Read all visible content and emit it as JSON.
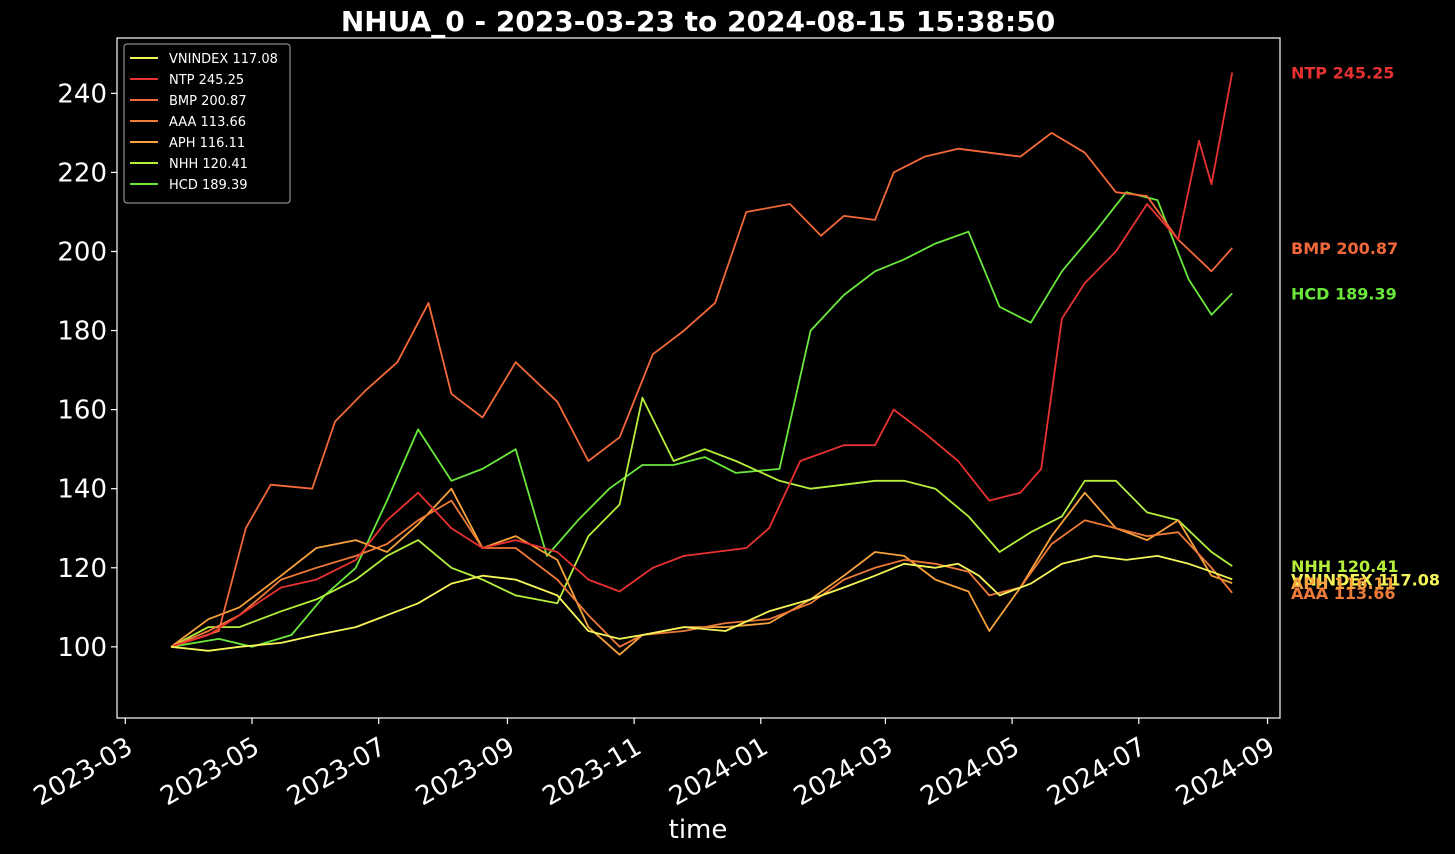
{
  "chart_data": {
    "type": "line",
    "title": "NHUA_0 - 2023-03-23 to 2024-08-15 15:38:50",
    "xlabel": "time",
    "ylabel": "",
    "xlim": [
      "2023-02-25",
      "2024-09-07"
    ],
    "ylim": [
      82,
      254
    ],
    "grid": false,
    "legend_position": "top-left",
    "y_ticks": [
      100,
      120,
      140,
      160,
      180,
      200,
      220,
      240
    ],
    "x_ticks": [
      "2023-03",
      "2023-05",
      "2023-07",
      "2023-09",
      "2023-11",
      "2024-01",
      "2024-03",
      "2024-05",
      "2024-07",
      "2024-09"
    ],
    "series": [
      {
        "name": "VNINDEX",
        "legend": "VNINDEX 117.08",
        "end_label": "VNINDEX 117.08",
        "color": "#f5f55a",
        "last": 117.08,
        "points": [
          [
            "2023-03-23",
            100
          ],
          [
            "2023-04-10",
            99
          ],
          [
            "2023-04-25",
            100
          ],
          [
            "2023-05-15",
            101
          ],
          [
            "2023-06-01",
            103
          ],
          [
            "2023-06-20",
            105
          ],
          [
            "2023-07-05",
            108
          ],
          [
            "2023-07-20",
            111
          ],
          [
            "2023-08-05",
            116
          ],
          [
            "2023-08-20",
            118
          ],
          [
            "2023-09-05",
            117
          ],
          [
            "2023-09-25",
            113
          ],
          [
            "2023-10-10",
            104
          ],
          [
            "2023-10-25",
            102
          ],
          [
            "2023-11-05",
            103
          ],
          [
            "2023-11-25",
            105
          ],
          [
            "2023-12-15",
            104
          ],
          [
            "2024-01-05",
            109
          ],
          [
            "2024-01-25",
            112
          ],
          [
            "2024-02-10",
            115
          ],
          [
            "2024-02-25",
            118
          ],
          [
            "2024-03-10",
            121
          ],
          [
            "2024-03-25",
            120
          ],
          [
            "2024-04-05",
            121
          ],
          [
            "2024-04-15",
            118
          ],
          [
            "2024-04-25",
            113
          ],
          [
            "2024-05-10",
            116
          ],
          [
            "2024-05-25",
            121
          ],
          [
            "2024-06-10",
            123
          ],
          [
            "2024-06-25",
            122
          ],
          [
            "2024-07-10",
            123
          ],
          [
            "2024-07-25",
            121
          ],
          [
            "2024-08-05",
            119
          ],
          [
            "2024-08-15",
            117.08
          ]
        ]
      },
      {
        "name": "NTP",
        "legend": "NTP 245.25",
        "end_label": "NTP 245.25",
        "color": "#e83232",
        "last": 245.25,
        "points": [
          [
            "2023-03-23",
            100
          ],
          [
            "2023-04-10",
            103
          ],
          [
            "2023-04-25",
            108
          ],
          [
            "2023-05-15",
            115
          ],
          [
            "2023-06-01",
            117
          ],
          [
            "2023-06-20",
            122
          ],
          [
            "2023-07-05",
            132
          ],
          [
            "2023-07-20",
            139
          ],
          [
            "2023-08-05",
            130
          ],
          [
            "2023-08-20",
            125
          ],
          [
            "2023-09-05",
            127
          ],
          [
            "2023-09-25",
            124
          ],
          [
            "2023-10-10",
            117
          ],
          [
            "2023-10-25",
            114
          ],
          [
            "2023-11-10",
            120
          ],
          [
            "2023-11-25",
            123
          ],
          [
            "2023-12-10",
            124
          ],
          [
            "2023-12-25",
            125
          ],
          [
            "2024-01-05",
            130
          ],
          [
            "2024-01-20",
            147
          ],
          [
            "2024-02-10",
            151
          ],
          [
            "2024-02-25",
            151
          ],
          [
            "2024-03-05",
            160
          ],
          [
            "2024-03-20",
            154
          ],
          [
            "2024-04-05",
            147
          ],
          [
            "2024-04-20",
            137
          ],
          [
            "2024-05-05",
            139
          ],
          [
            "2024-05-15",
            145
          ],
          [
            "2024-05-25",
            183
          ],
          [
            "2024-06-05",
            192
          ],
          [
            "2024-06-20",
            200
          ],
          [
            "2024-07-05",
            212
          ],
          [
            "2024-07-20",
            203
          ],
          [
            "2024-07-30",
            228
          ],
          [
            "2024-08-05",
            217
          ],
          [
            "2024-08-15",
            245.25
          ]
        ]
      },
      {
        "name": "BMP",
        "legend": "BMP 200.87",
        "end_label": "BMP 200.87",
        "color": "#f2683a",
        "last": 200.87,
        "points": [
          [
            "2023-03-23",
            100
          ],
          [
            "2023-04-15",
            104
          ],
          [
            "2023-04-28",
            130
          ],
          [
            "2023-05-10",
            141
          ],
          [
            "2023-05-30",
            140
          ],
          [
            "2023-06-10",
            157
          ],
          [
            "2023-06-25",
            165
          ],
          [
            "2023-07-10",
            172
          ],
          [
            "2023-07-25",
            187
          ],
          [
            "2023-08-05",
            164
          ],
          [
            "2023-08-20",
            158
          ],
          [
            "2023-09-05",
            172
          ],
          [
            "2023-09-25",
            162
          ],
          [
            "2023-10-10",
            147
          ],
          [
            "2023-10-25",
            153
          ],
          [
            "2023-11-10",
            174
          ],
          [
            "2023-11-25",
            180
          ],
          [
            "2023-12-10",
            187
          ],
          [
            "2023-12-25",
            210
          ],
          [
            "2024-01-15",
            212
          ],
          [
            "2024-01-30",
            204
          ],
          [
            "2024-02-10",
            209
          ],
          [
            "2024-02-25",
            208
          ],
          [
            "2024-03-05",
            220
          ],
          [
            "2024-03-20",
            224
          ],
          [
            "2024-04-05",
            226
          ],
          [
            "2024-04-20",
            225
          ],
          [
            "2024-05-05",
            224
          ],
          [
            "2024-05-20",
            230
          ],
          [
            "2024-06-05",
            225
          ],
          [
            "2024-06-20",
            215
          ],
          [
            "2024-07-05",
            214
          ],
          [
            "2024-07-20",
            203
          ],
          [
            "2024-08-05",
            195
          ],
          [
            "2024-08-15",
            200.87
          ]
        ]
      },
      {
        "name": "AAA",
        "legend": "AAA 113.66",
        "end_label": "AAA 113.66",
        "color": "#ee7a38",
        "last": 113.66,
        "points": [
          [
            "2023-03-23",
            100
          ],
          [
            "2023-04-10",
            104
          ],
          [
            "2023-04-25",
            108
          ],
          [
            "2023-05-15",
            117
          ],
          [
            "2023-06-01",
            120
          ],
          [
            "2023-06-20",
            123
          ],
          [
            "2023-07-05",
            126
          ],
          [
            "2023-07-20",
            132
          ],
          [
            "2023-08-05",
            137
          ],
          [
            "2023-08-20",
            125
          ],
          [
            "2023-09-05",
            125
          ],
          [
            "2023-09-25",
            117
          ],
          [
            "2023-10-10",
            108
          ],
          [
            "2023-10-25",
            100
          ],
          [
            "2023-11-05",
            103
          ],
          [
            "2023-11-25",
            104
          ],
          [
            "2023-12-15",
            106
          ],
          [
            "2024-01-05",
            107
          ],
          [
            "2024-01-25",
            111
          ],
          [
            "2024-02-10",
            117
          ],
          [
            "2024-02-25",
            120
          ],
          [
            "2024-03-10",
            122
          ],
          [
            "2024-03-25",
            121
          ],
          [
            "2024-04-10",
            119
          ],
          [
            "2024-04-20",
            113
          ],
          [
            "2024-05-05",
            115
          ],
          [
            "2024-05-20",
            126
          ],
          [
            "2024-06-05",
            132
          ],
          [
            "2024-06-20",
            130
          ],
          [
            "2024-07-05",
            128
          ],
          [
            "2024-07-20",
            129
          ],
          [
            "2024-08-05",
            120
          ],
          [
            "2024-08-15",
            113.66
          ]
        ]
      },
      {
        "name": "APH",
        "legend": "APH 116.11",
        "end_label": "APH 116.11",
        "color": "#f7a23c",
        "last": 116.11,
        "points": [
          [
            "2023-03-23",
            100
          ],
          [
            "2023-04-10",
            107
          ],
          [
            "2023-04-25",
            110
          ],
          [
            "2023-05-15",
            118
          ],
          [
            "2023-06-01",
            125
          ],
          [
            "2023-06-20",
            127
          ],
          [
            "2023-07-05",
            124
          ],
          [
            "2023-07-20",
            131
          ],
          [
            "2023-08-05",
            140
          ],
          [
            "2023-08-20",
            125
          ],
          [
            "2023-09-05",
            128
          ],
          [
            "2023-09-25",
            122
          ],
          [
            "2023-10-10",
            105
          ],
          [
            "2023-10-25",
            98
          ],
          [
            "2023-11-05",
            103
          ],
          [
            "2023-11-25",
            105
          ],
          [
            "2023-12-15",
            105
          ],
          [
            "2024-01-05",
            106
          ],
          [
            "2024-01-25",
            112
          ],
          [
            "2024-02-10",
            118
          ],
          [
            "2024-02-25",
            124
          ],
          [
            "2024-03-10",
            123
          ],
          [
            "2024-03-25",
            117
          ],
          [
            "2024-04-10",
            114
          ],
          [
            "2024-04-20",
            104
          ],
          [
            "2024-05-05",
            115
          ],
          [
            "2024-05-20",
            128
          ],
          [
            "2024-06-05",
            139
          ],
          [
            "2024-06-20",
            130
          ],
          [
            "2024-07-05",
            127
          ],
          [
            "2024-07-20",
            132
          ],
          [
            "2024-08-05",
            118
          ],
          [
            "2024-08-15",
            116.11
          ]
        ]
      },
      {
        "name": "NHH",
        "legend": "NHH 120.41",
        "end_label": "NHH 120.41",
        "color": "#b6ee3c",
        "last": 120.41,
        "points": [
          [
            "2023-03-23",
            100
          ],
          [
            "2023-04-10",
            105
          ],
          [
            "2023-04-25",
            105
          ],
          [
            "2023-05-15",
            109
          ],
          [
            "2023-06-01",
            112
          ],
          [
            "2023-06-20",
            117
          ],
          [
            "2023-07-05",
            123
          ],
          [
            "2023-07-20",
            127
          ],
          [
            "2023-08-05",
            120
          ],
          [
            "2023-08-20",
            117
          ],
          [
            "2023-09-05",
            113
          ],
          [
            "2023-09-25",
            111
          ],
          [
            "2023-10-10",
            128
          ],
          [
            "2023-10-25",
            136
          ],
          [
            "2023-11-05",
            163
          ],
          [
            "2023-11-20",
            147
          ],
          [
            "2023-12-05",
            150
          ],
          [
            "2023-12-20",
            147
          ],
          [
            "2024-01-10",
            142
          ],
          [
            "2024-01-25",
            140
          ],
          [
            "2024-02-10",
            141
          ],
          [
            "2024-02-25",
            142
          ],
          [
            "2024-03-10",
            142
          ],
          [
            "2024-03-25",
            140
          ],
          [
            "2024-04-10",
            133
          ],
          [
            "2024-04-25",
            124
          ],
          [
            "2024-05-10",
            129
          ],
          [
            "2024-05-25",
            133
          ],
          [
            "2024-06-05",
            142
          ],
          [
            "2024-06-20",
            142
          ],
          [
            "2024-07-05",
            134
          ],
          [
            "2024-07-20",
            132
          ],
          [
            "2024-08-05",
            124
          ],
          [
            "2024-08-15",
            120.41
          ]
        ]
      },
      {
        "name": "HCD",
        "legend": "HCD 189.39",
        "end_label": "HCD 189.39",
        "color": "#6ae83c",
        "last": 189.39,
        "points": [
          [
            "2023-03-23",
            100
          ],
          [
            "2023-04-15",
            102
          ],
          [
            "2023-05-01",
            100
          ],
          [
            "2023-05-20",
            103
          ],
          [
            "2023-06-05",
            113
          ],
          [
            "2023-06-20",
            120
          ],
          [
            "2023-07-05",
            137
          ],
          [
            "2023-07-20",
            155
          ],
          [
            "2023-08-05",
            142
          ],
          [
            "2023-08-20",
            145
          ],
          [
            "2023-09-05",
            150
          ],
          [
            "2023-09-20",
            123
          ],
          [
            "2023-10-05",
            132
          ],
          [
            "2023-10-20",
            140
          ],
          [
            "2023-11-05",
            146
          ],
          [
            "2023-11-20",
            146
          ],
          [
            "2023-12-05",
            148
          ],
          [
            "2023-12-20",
            144
          ],
          [
            "2024-01-10",
            145
          ],
          [
            "2024-01-25",
            180
          ],
          [
            "2024-02-10",
            189
          ],
          [
            "2024-02-25",
            195
          ],
          [
            "2024-03-10",
            198
          ],
          [
            "2024-03-25",
            202
          ],
          [
            "2024-04-10",
            205
          ],
          [
            "2024-04-25",
            186
          ],
          [
            "2024-05-10",
            182
          ],
          [
            "2024-05-25",
            195
          ],
          [
            "2024-06-10",
            205
          ],
          [
            "2024-06-25",
            215
          ],
          [
            "2024-07-10",
            213
          ],
          [
            "2024-07-25",
            193
          ],
          [
            "2024-08-05",
            184
          ],
          [
            "2024-08-15",
            189.39
          ]
        ]
      }
    ]
  }
}
